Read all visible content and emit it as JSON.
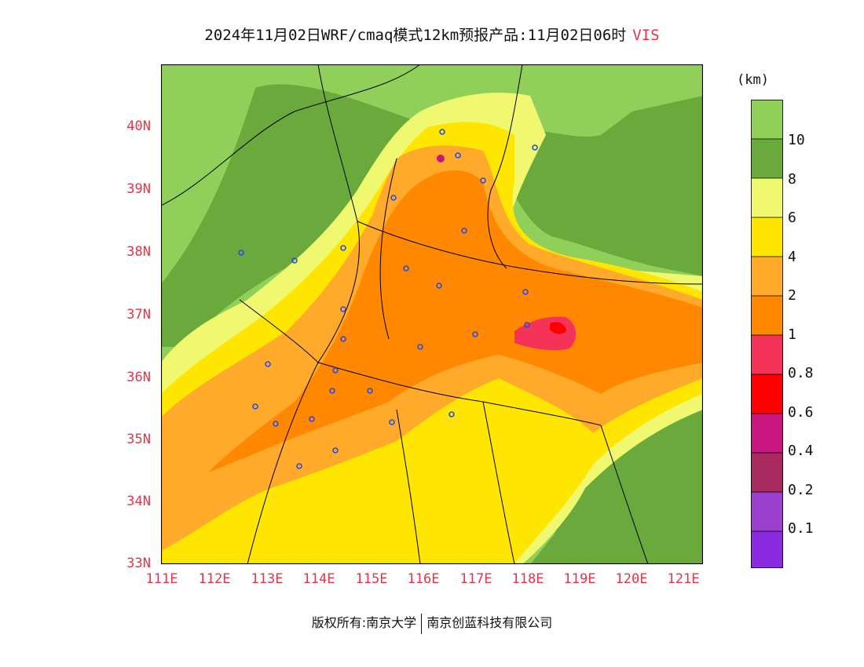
{
  "title": "2024年11月02日WRF/cmaq模式12km预报产品:11月02日06时",
  "product": "VIS",
  "map": {
    "lat_ticks": [
      "40N",
      "39N",
      "38N",
      "37N",
      "36N",
      "35N",
      "34N",
      "33N"
    ],
    "lon_ticks": [
      "111E",
      "112E",
      "113E",
      "114E",
      "115E",
      "116E",
      "117E",
      "118E",
      "119E",
      "120E",
      "121E"
    ]
  },
  "legend": {
    "unit": "(km)",
    "labels": [
      "10",
      "8",
      "6",
      "4",
      "2",
      "1",
      "0.8",
      "0.6",
      "0.4",
      "0.2",
      "0.1"
    ],
    "colors": [
      "#8fcf5a",
      "#6aaa3c",
      "#f0f870",
      "#ffe600",
      "#ffaa2a",
      "#ff8800",
      "#f53358",
      "#ff0000",
      "#c8167e",
      "#a82a5e",
      "#9b3fd0",
      "#8a2be2"
    ]
  },
  "colors": {
    "accent": "#e8334a",
    "borders": "#000000",
    "cities": "#2a4de0"
  },
  "footer": {
    "left": "版权所有:南京大学",
    "right": "南京创蓝科技有限公司"
  }
}
